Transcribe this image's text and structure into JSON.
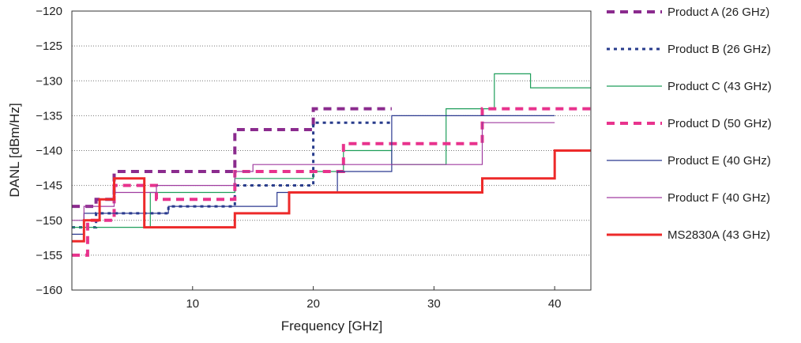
{
  "chart_data": {
    "type": "line",
    "title": "",
    "xlabel": "Frequency [GHz]",
    "ylabel": "DANL [dBm/Hz]",
    "xlim": [
      0,
      43
    ],
    "ylim": [
      -160,
      -120
    ],
    "xticks": [
      10,
      20,
      30,
      40
    ],
    "yticks": [
      -120,
      -125,
      -130,
      -135,
      -140,
      -145,
      -150,
      -155,
      -160
    ],
    "grid": "horizontal dotted",
    "legend_position": "right",
    "series": [
      {
        "name": "Product A (26 GHz)",
        "color": "#8b2b8e",
        "dash": "dashed",
        "width": 4,
        "x": [
          0,
          2,
          2,
          3.5,
          3.5,
          13.5,
          13.5,
          20,
          20,
          26.5
        ],
        "y": [
          -148,
          -148,
          -147,
          -147,
          -143,
          -143,
          -137,
          -137,
          -134,
          -134
        ]
      },
      {
        "name": "Product B (26 GHz)",
        "color": "#283c8c",
        "dash": "dotted",
        "width": 3,
        "x": [
          0,
          2,
          2,
          8,
          8,
          13.5,
          13.5,
          20,
          20,
          26.5
        ],
        "y": [
          -151,
          -151,
          -149,
          -149,
          -148,
          -148,
          -145,
          -145,
          -136,
          -136
        ]
      },
      {
        "name": "Product C (43 GHz)",
        "color": "#1e9e5a",
        "dash": "solid",
        "width": 1.2,
        "x": [
          0,
          3,
          3,
          6.5,
          6.5,
          13.5,
          13.5,
          20,
          20,
          22.5,
          22.5,
          26.5,
          26.5,
          31,
          31,
          35,
          35,
          38,
          38,
          43
        ],
        "y": [
          -151,
          -151,
          -151,
          -151,
          -146,
          -146,
          -144,
          -144,
          -143,
          -143,
          -140,
          -140,
          -142,
          -142,
          -134,
          -134,
          -129,
          -129,
          -131,
          -131
        ]
      },
      {
        "name": "Product D (50 GHz)",
        "color": "#e8338d",
        "dash": "dashed",
        "width": 4,
        "x": [
          0,
          1.3,
          1.3,
          3.5,
          3.5,
          7,
          7,
          13.5,
          13.5,
          22.5,
          22.5,
          34,
          34,
          43
        ],
        "y": [
          -155,
          -155,
          -150,
          -150,
          -145,
          -145,
          -147,
          -147,
          -143,
          -143,
          -139,
          -139,
          -134,
          -134
        ]
      },
      {
        "name": "Product E (40 GHz)",
        "color": "#2b3990",
        "dash": "solid",
        "width": 1.2,
        "x": [
          0,
          1,
          1,
          3.5,
          3.5,
          8,
          8,
          17,
          17,
          22,
          22,
          26.5,
          26.5,
          40
        ],
        "y": [
          -152,
          -152,
          -149,
          -149,
          -149,
          -149,
          -148,
          -148,
          -146,
          -146,
          -143,
          -143,
          -135,
          -135
        ]
      },
      {
        "name": "Product F (40 GHz)",
        "color": "#a03ca0",
        "dash": "solid",
        "width": 1.2,
        "x": [
          0,
          1,
          1,
          3.5,
          3.5,
          7,
          7,
          13.5,
          13.5,
          15,
          15,
          34,
          34,
          40
        ],
        "y": [
          -150,
          -150,
          -148,
          -148,
          -146,
          -146,
          -145,
          -145,
          -143,
          -143,
          -142,
          -142,
          -136,
          -136
        ]
      },
      {
        "name": "MS2830A (43 GHz)",
        "color": "#ed2a2a",
        "dash": "solid",
        "width": 3,
        "x": [
          0,
          1,
          1,
          2.3,
          2.3,
          3.5,
          3.5,
          6,
          6,
          13.5,
          13.5,
          18,
          18,
          34,
          34,
          40,
          40,
          43
        ],
        "y": [
          -153,
          -153,
          -150,
          -150,
          -147,
          -147,
          -144,
          -144,
          -151,
          -151,
          -149,
          -149,
          -146,
          -146,
          -144,
          -144,
          -140,
          -140
        ]
      }
    ]
  }
}
